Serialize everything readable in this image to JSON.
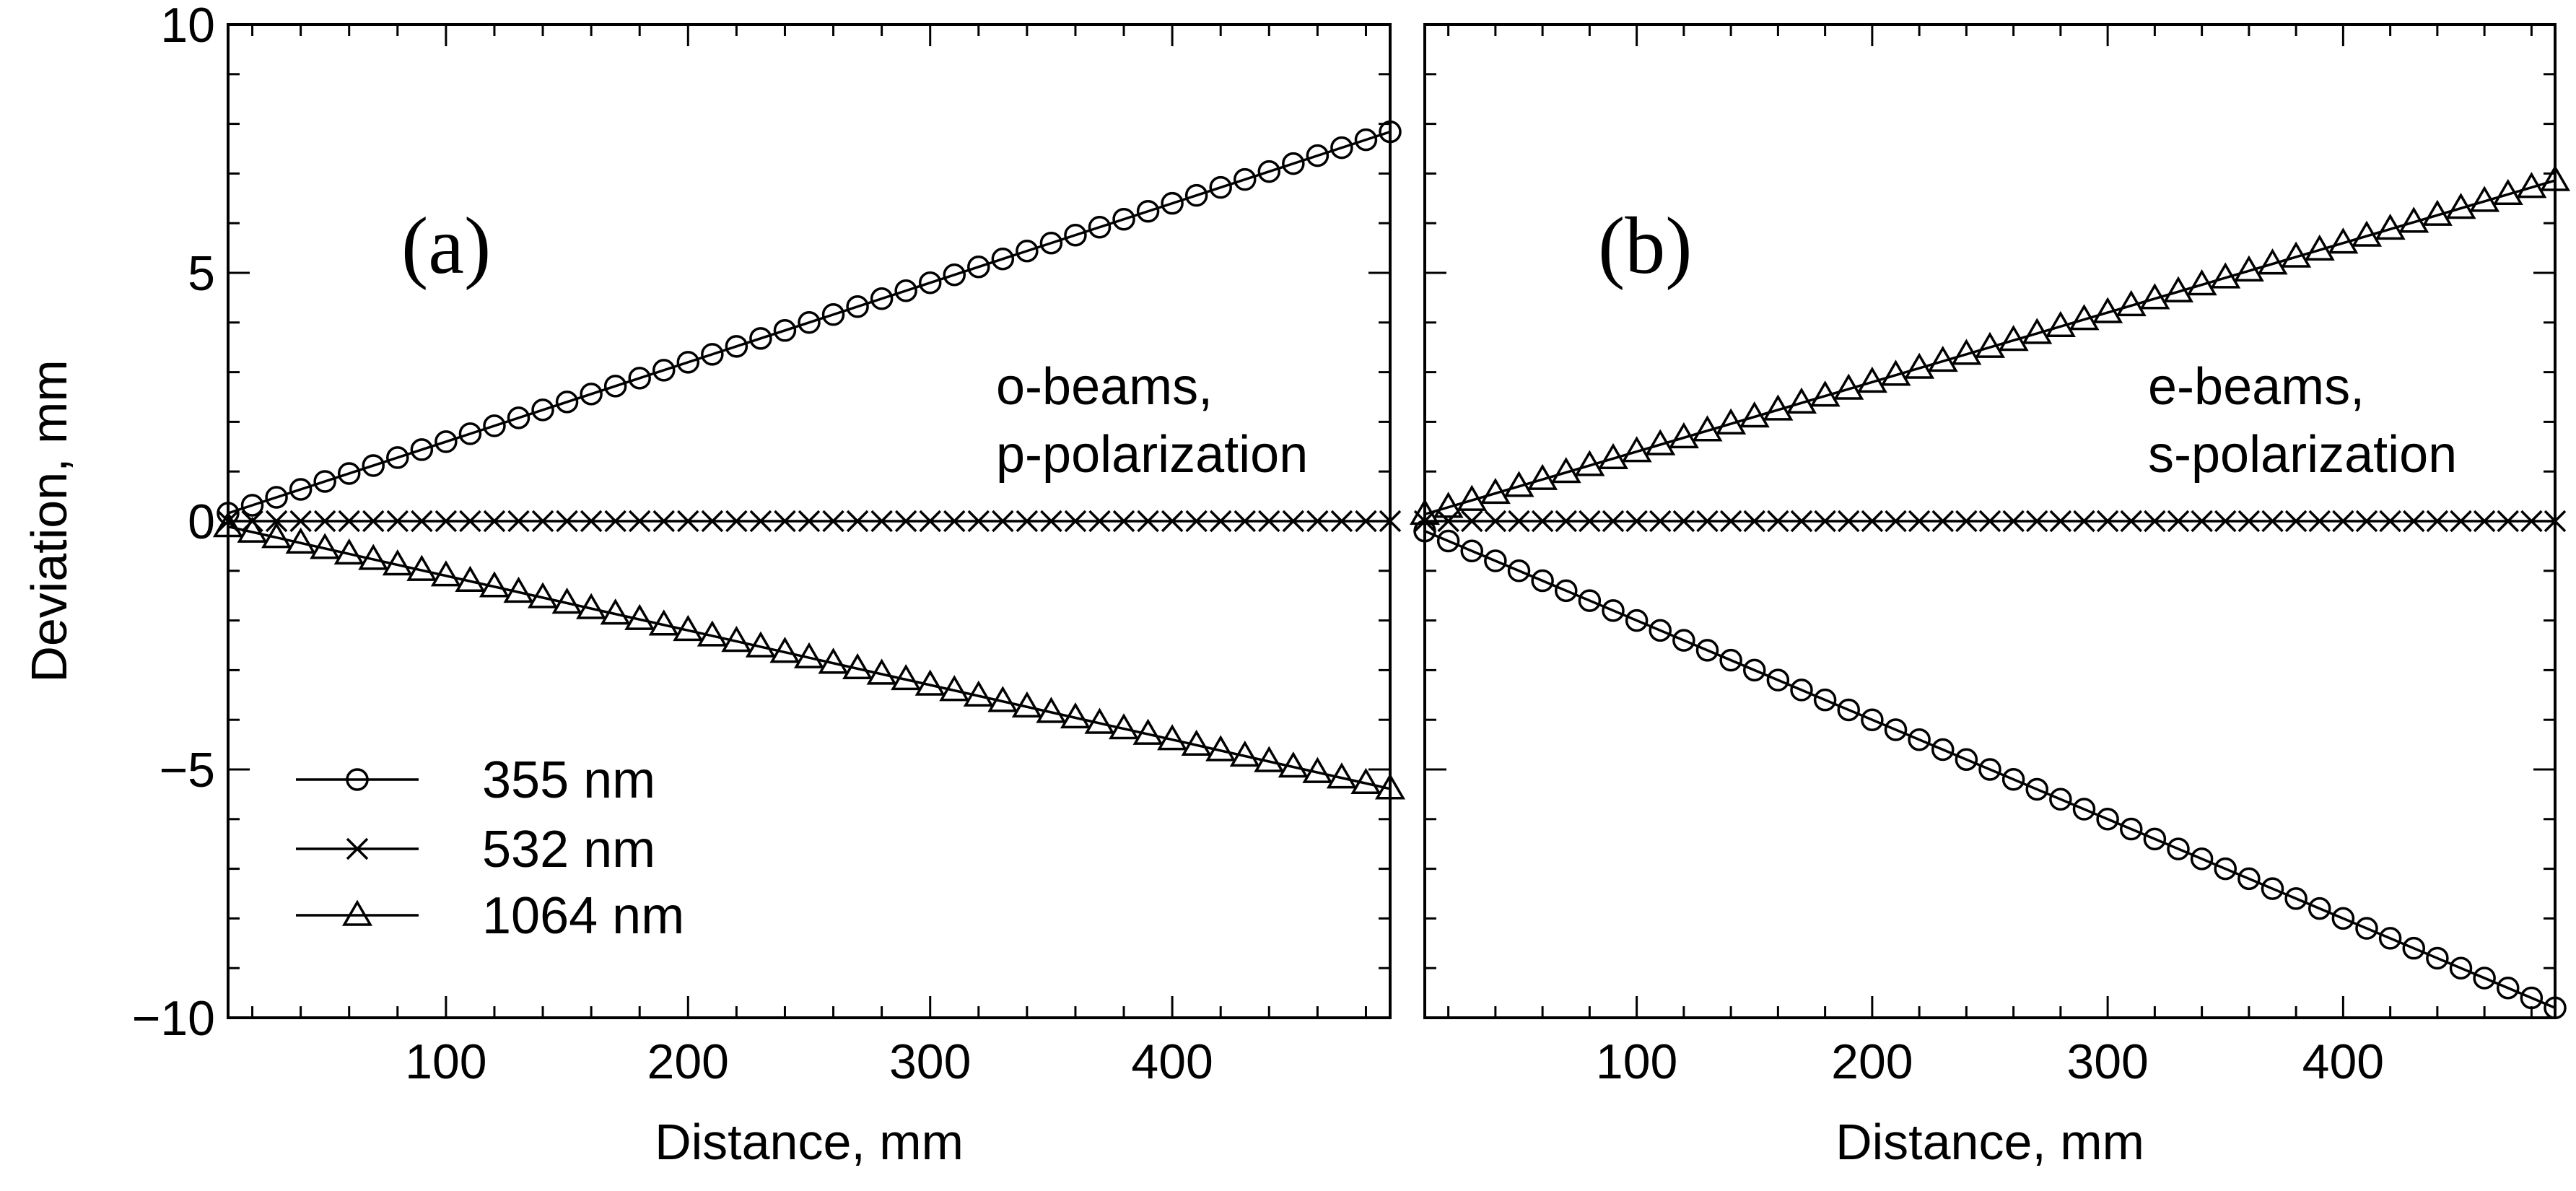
{
  "chart_data": [
    {
      "type": "line",
      "panel": "(a)",
      "annotation": [
        "o-beams,",
        "p-polarization"
      ],
      "xlabel": "Distance, mm",
      "ylabel": "Deviation, mm",
      "xlim": [
        10,
        490
      ],
      "ylim": [
        -10,
        10
      ],
      "xticks": [
        100,
        200,
        300,
        400
      ],
      "yticks": [
        10,
        5,
        0,
        -5,
        -10
      ],
      "ytick_labels": [
        "10",
        "5",
        "0",
        "−5",
        "−10"
      ],
      "series": [
        {
          "name": "355 nm",
          "marker": "circle",
          "x": [
            10,
            490
          ],
          "y": [
            0.16,
            7.84
          ]
        },
        {
          "name": "532 nm",
          "marker": "cross",
          "x": [
            10,
            490
          ],
          "y": [
            0,
            0
          ]
        },
        {
          "name": "1064 nm",
          "marker": "triangle",
          "x": [
            10,
            490
          ],
          "y": [
            -0.11,
            -5.39
          ]
        }
      ],
      "legend": {
        "position": "bottom-left",
        "entries": [
          "355 nm",
          "532 nm",
          "1064 nm"
        ]
      }
    },
    {
      "type": "line",
      "panel": "(b)",
      "annotation": [
        "e-beams,",
        "s-polarization"
      ],
      "xlabel": "Distance, mm",
      "ylabel": "",
      "xlim": [
        10,
        490
      ],
      "ylim": [
        -10,
        10
      ],
      "xticks": [
        100,
        200,
        300,
        400
      ],
      "yticks": [],
      "series": [
        {
          "name": "355 nm",
          "marker": "circle",
          "x": [
            10,
            490
          ],
          "y": [
            -0.2,
            -9.8
          ]
        },
        {
          "name": "532 nm",
          "marker": "cross",
          "x": [
            10,
            490
          ],
          "y": [
            0,
            0
          ]
        },
        {
          "name": "1064 nm",
          "marker": "triangle",
          "x": [
            10,
            490
          ],
          "y": [
            0.14,
            6.86
          ]
        }
      ]
    }
  ]
}
